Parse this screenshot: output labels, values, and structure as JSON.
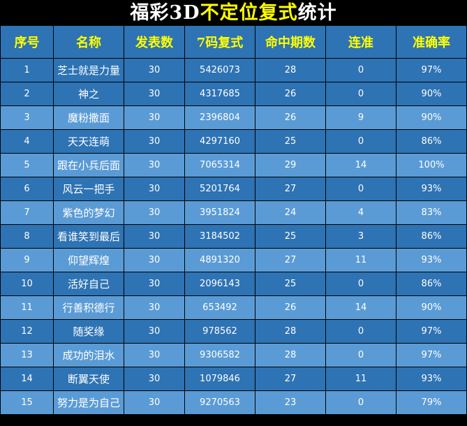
{
  "title": {
    "part1": "福彩3D",
    "part2": "不定位复式",
    "part3": "统计"
  },
  "colors": {
    "header_bg": "#2e73b4",
    "dark_row": "#2e73b4",
    "light_row": "#5a9bd5",
    "header_text": "#ffff00",
    "title_highlight": "#ffff00"
  },
  "columns": [
    "序号",
    "名称",
    "发表数",
    "7码复式",
    "命中期数",
    "连准",
    "准确率"
  ],
  "rows": [
    [
      "1",
      "芝士就是力量",
      "30",
      "5426073",
      "28",
      "0",
      "97%"
    ],
    [
      "2",
      "神之",
      "30",
      "4317685",
      "26",
      "0",
      "90%"
    ],
    [
      "3",
      "魔粉撒面",
      "30",
      "2396804",
      "26",
      "9",
      "90%"
    ],
    [
      "4",
      "天天连萌",
      "30",
      "4297160",
      "25",
      "0",
      "86%"
    ],
    [
      "5",
      "跟在小兵后面",
      "30",
      "7065314",
      "29",
      "14",
      "100%"
    ],
    [
      "6",
      "风云一把手",
      "30",
      "5201764",
      "27",
      "0",
      "93%"
    ],
    [
      "7",
      "紫色的梦幻",
      "30",
      "3951824",
      "24",
      "4",
      "83%"
    ],
    [
      "8",
      "看谁笑到最后",
      "30",
      "3184502",
      "25",
      "3",
      "86%"
    ],
    [
      "9",
      "仰望辉煌",
      "30",
      "4891320",
      "27",
      "11",
      "93%"
    ],
    [
      "10",
      "活好自己",
      "30",
      "2096143",
      "25",
      "0",
      "86%"
    ],
    [
      "11",
      "行善积德行",
      "30",
      "653492",
      "26",
      "14",
      "90%"
    ],
    [
      "12",
      "随奖缘",
      "30",
      "978562",
      "28",
      "0",
      "97%"
    ],
    [
      "13",
      "成功的泪水",
      "30",
      "9306582",
      "28",
      "0",
      "97%"
    ],
    [
      "14",
      "断翼天使",
      "30",
      "1079846",
      "27",
      "11",
      "93%"
    ],
    [
      "15",
      "努力是为自己",
      "30",
      "9270563",
      "23",
      "0",
      "79%"
    ]
  ]
}
